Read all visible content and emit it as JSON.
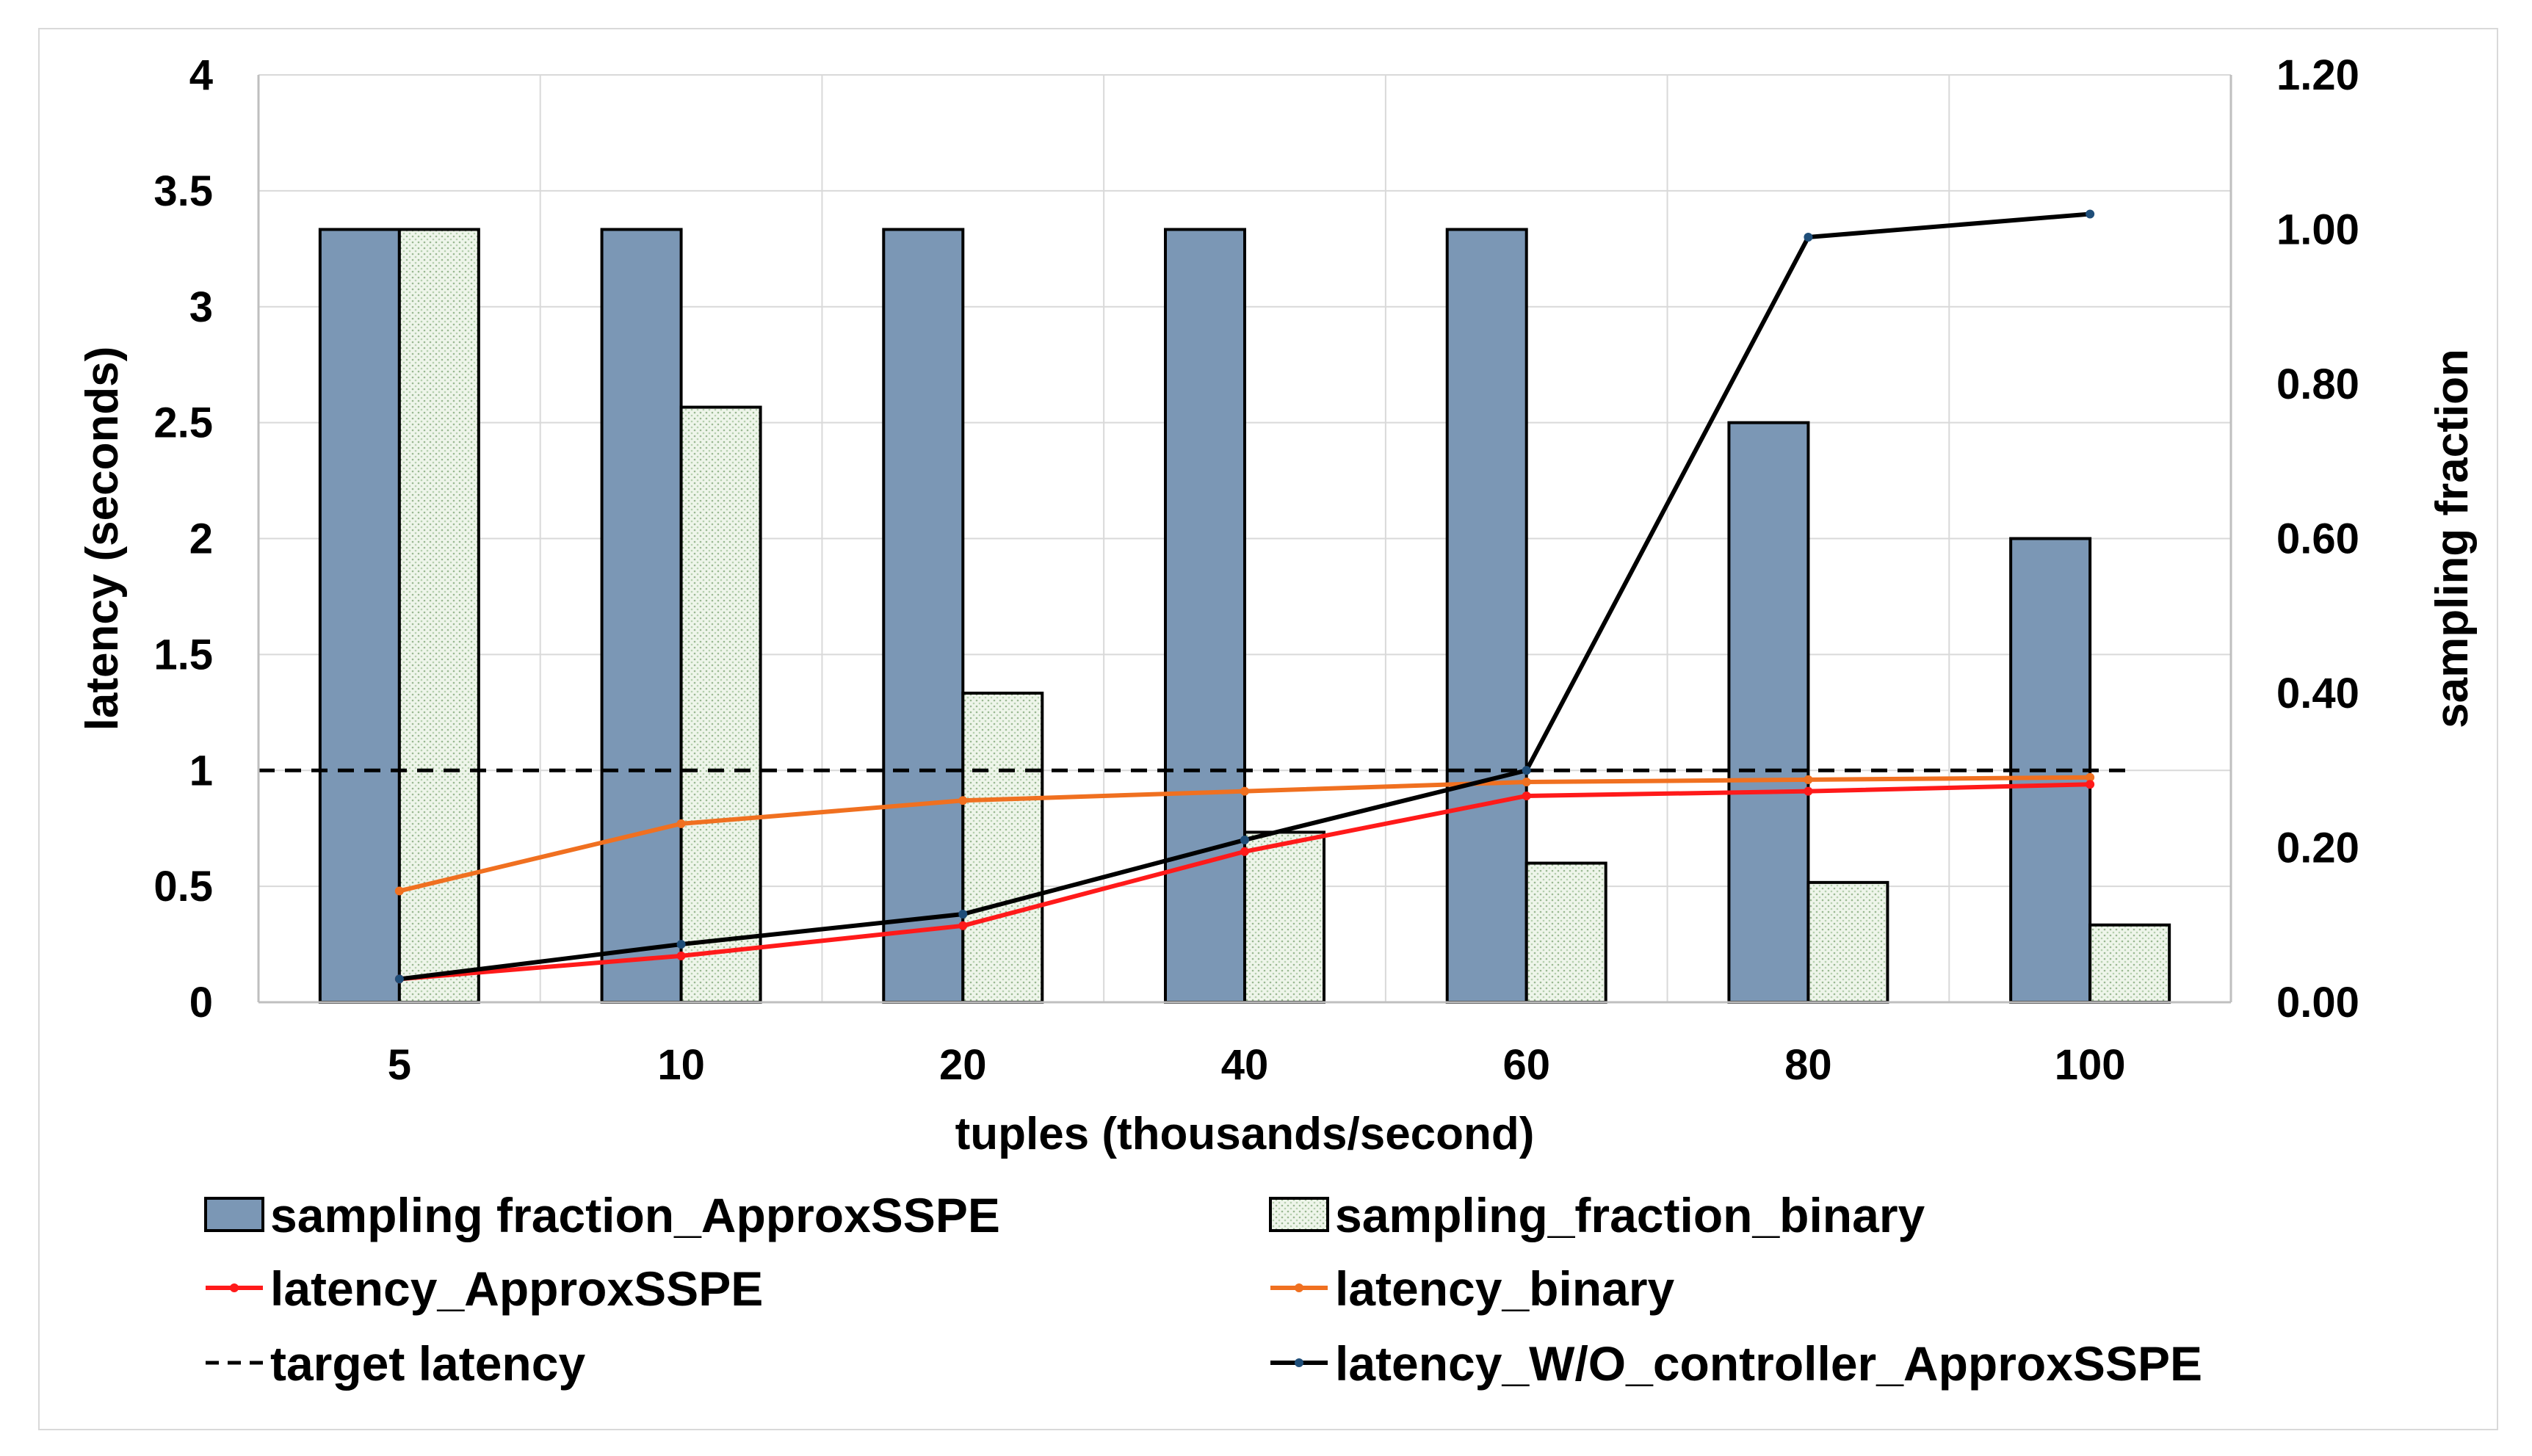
{
  "chart_data": {
    "type": "bar",
    "categories": [
      "5",
      "10",
      "20",
      "40",
      "60",
      "80",
      "100"
    ],
    "xlabel": "tuples (thousands/second)",
    "ylabel_left": "latency (seconds)",
    "ylabel_right": "sampling fraction",
    "ylim_left": [
      0,
      4
    ],
    "ylim_right": [
      0,
      1.2
    ],
    "left_ticks": [
      "0",
      "0.5",
      "1",
      "1.5",
      "2",
      "2.5",
      "3",
      "3.5",
      "4"
    ],
    "right_ticks": [
      "0.00",
      "0.20",
      "0.40",
      "0.60",
      "0.80",
      "1.00",
      "1.20"
    ],
    "bar_series": [
      {
        "name": "sampling fraction_ApproxSSPE",
        "axis": "right",
        "color": "#7b97b5",
        "values": [
          1.0,
          1.0,
          1.0,
          1.0,
          1.0,
          0.75,
          0.6
        ]
      },
      {
        "name": "sampling_fraction_binary",
        "axis": "right",
        "color": "#e9f1e4",
        "values": [
          1.0,
          0.77,
          0.4,
          0.22,
          0.18,
          0.155,
          0.1
        ]
      }
    ],
    "line_series": [
      {
        "name": "latency_ApproxSSPE",
        "axis": "left",
        "color": "#ff1a1a",
        "values": [
          0.1,
          0.2,
          0.33,
          0.65,
          0.89,
          0.91,
          0.94
        ]
      },
      {
        "name": "latency_binary",
        "axis": "left",
        "color": "#f07020",
        "values": [
          0.48,
          0.77,
          0.87,
          0.91,
          0.95,
          0.96,
          0.97
        ]
      },
      {
        "name": "target latency",
        "axis": "left",
        "color": "#000000",
        "dashed": true,
        "values": [
          1,
          1,
          1,
          1,
          1,
          1,
          1
        ]
      },
      {
        "name": "latency_W/O_controller_ApproxSSPE",
        "axis": "left",
        "color": "#000000",
        "marker_color": "#1f4e79",
        "values": [
          0.1,
          0.25,
          0.38,
          0.7,
          1.0,
          3.3,
          3.4
        ]
      }
    ],
    "legend": {
      "position": "bottom",
      "items": [
        {
          "label": "sampling fraction_ApproxSSPE",
          "kind": "bar",
          "color": "#7b97b5"
        },
        {
          "label": "sampling_fraction_binary",
          "kind": "bar",
          "color": "#e9f1e4"
        },
        {
          "label": "latency_ApproxSSPE",
          "kind": "line",
          "color": "#ff1a1a"
        },
        {
          "label": "latency_binary",
          "kind": "line",
          "color": "#f07020"
        },
        {
          "label": "target latency",
          "kind": "dashed",
          "color": "#000000"
        },
        {
          "label": "latency_W/O_controller_ApproxSSPE",
          "kind": "line",
          "color": "#000000"
        }
      ]
    }
  }
}
